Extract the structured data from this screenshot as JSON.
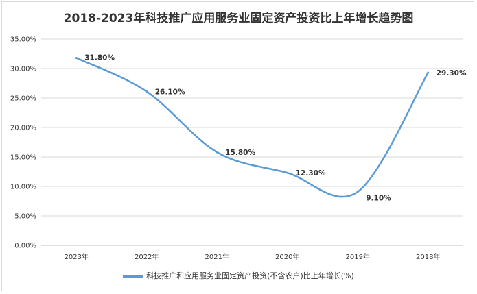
{
  "chart_data": {
    "type": "line",
    "title": "2018-2023年科技推广应用服务业固定资产投资比上年增长趋势图",
    "categories": [
      "2023年",
      "2022年",
      "2021年",
      "2020年",
      "2019年",
      "2018年"
    ],
    "series": [
      {
        "name": "科技推广和应用服务业固定资产投资(不含农户)比上年增长(%)",
        "values": [
          31.8,
          26.1,
          15.8,
          12.3,
          9.1,
          29.3
        ],
        "color": "#5b9bd5"
      }
    ],
    "data_labels": [
      "31.80%",
      "26.10%",
      "15.80%",
      "12.30%",
      "9.10%",
      "29.30%"
    ],
    "y_ticks": [
      "0.00%",
      "5.00%",
      "10.00%",
      "15.00%",
      "20.00%",
      "25.00%",
      "30.00%",
      "35.00%"
    ],
    "ylim": [
      0,
      35
    ],
    "grid": true,
    "smooth": true,
    "legend_position": "bottom"
  }
}
